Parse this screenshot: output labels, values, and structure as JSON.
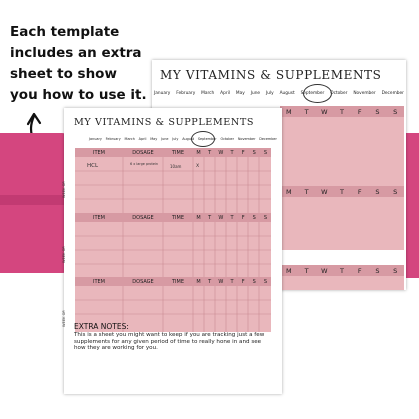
{
  "caption": [
    "Each template",
    "includes an extra",
    "sheet to show",
    "you how to use it."
  ],
  "back_sheet": {
    "title": "MY VITAMINS & SUPPLEMENTS",
    "months": [
      "January",
      "February",
      "March",
      "April",
      "May",
      "June",
      "July",
      "August",
      "September",
      "October",
      "November",
      "December"
    ],
    "circled_month": "September",
    "day_headers": [
      "M",
      "T",
      "W",
      "T",
      "F",
      "S",
      "S"
    ]
  },
  "front_sheet": {
    "title": "MY VITAMINS & SUPPLEMENTS",
    "months": [
      "January",
      "February",
      "March",
      "April",
      "May",
      "June",
      "July",
      "August",
      "September",
      "October",
      "November",
      "December"
    ],
    "circled_month": "September",
    "columns": [
      "ITEM",
      "DOSAGE",
      "TIME"
    ],
    "day_headers": [
      "M",
      "T",
      "W",
      "T",
      "F",
      "S",
      "S"
    ],
    "week_label": "WEEK OF:",
    "example_row": {
      "item": "HCL",
      "dosage": "6 x large protein",
      "time": "10am",
      "mark": "X"
    },
    "extra_notes_title": "EXTRA NOTES:",
    "extra_notes": "This is a sheet you might want to keep if you are tracking just a few supplements for any given period of time to really hone in and see how they are working for you."
  },
  "colors": {
    "accent": "#d4467f",
    "table_bg": "#e9b7bc",
    "header_bg": "#d79aa3"
  }
}
